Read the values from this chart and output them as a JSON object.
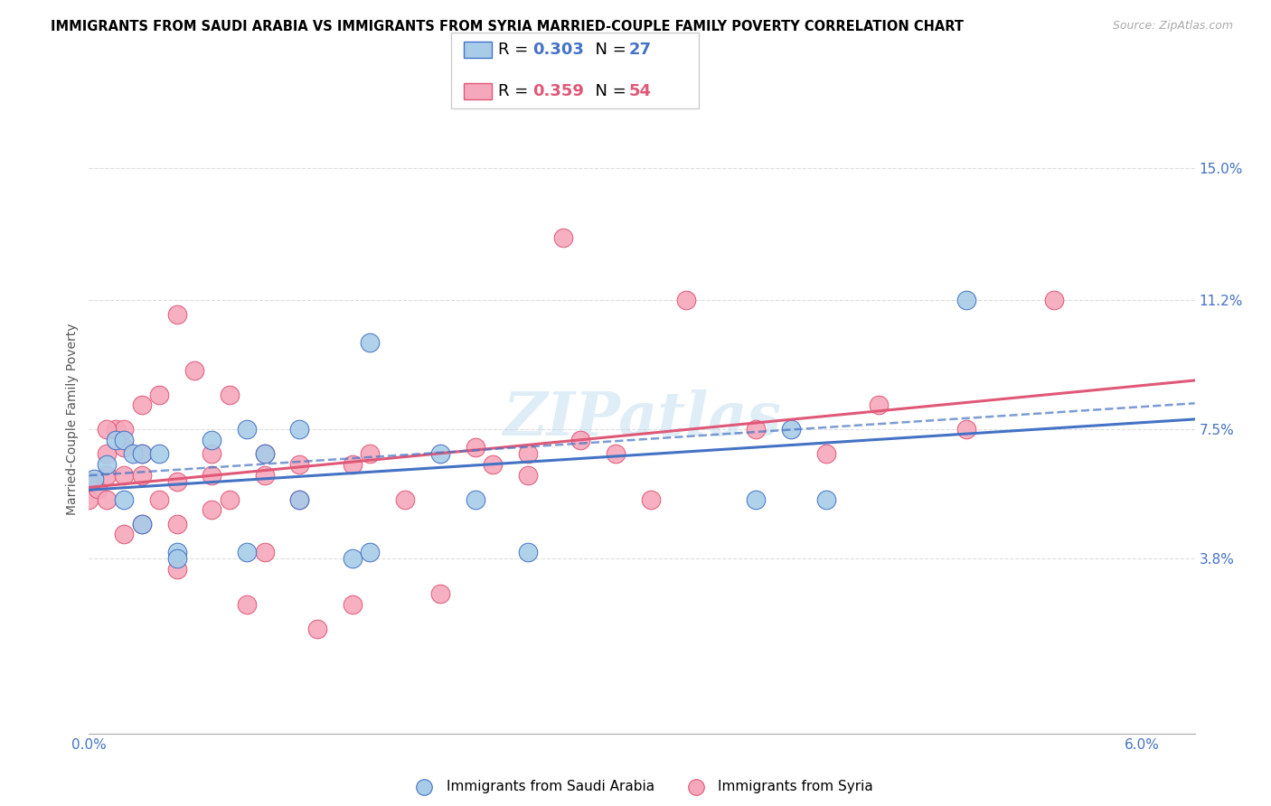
{
  "title": "IMMIGRANTS FROM SAUDI ARABIA VS IMMIGRANTS FROM SYRIA MARRIED-COUPLE FAMILY POVERTY CORRELATION CHART",
  "source": "Source: ZipAtlas.com",
  "ylabel": "Married-Couple Family Poverty",
  "xlim": [
    0.0,
    0.063
  ],
  "ylim": [
    -0.012,
    0.168
  ],
  "xticks": [
    0.0,
    0.01,
    0.02,
    0.03,
    0.04,
    0.05,
    0.06
  ],
  "xticklabels": [
    "0.0%",
    "",
    "",
    "",
    "",
    "",
    "6.0%"
  ],
  "ytick_vals": [
    0.038,
    0.075,
    0.112,
    0.15
  ],
  "yticklabels": [
    "3.8%",
    "7.5%",
    "11.2%",
    "15.0%"
  ],
  "saudi_color": "#a8cce8",
  "syria_color": "#f5a8bb",
  "saudi_line_color": "#4472c4",
  "syria_line_color": "#e05878",
  "saudi_R": 0.303,
  "saudi_N": 27,
  "syria_R": 0.359,
  "syria_N": 54,
  "legend_label_saudi": "Immigrants from Saudi Arabia",
  "legend_label_syria": "Immigrants from Syria",
  "watermark": "ZIPatlas",
  "saudi_x": [
    0.0003,
    0.001,
    0.0015,
    0.002,
    0.002,
    0.0025,
    0.003,
    0.003,
    0.004,
    0.005,
    0.005,
    0.007,
    0.009,
    0.009,
    0.01,
    0.012,
    0.012,
    0.015,
    0.016,
    0.016,
    0.02,
    0.022,
    0.025,
    0.04,
    0.042,
    0.05,
    0.038
  ],
  "saudi_y": [
    0.061,
    0.065,
    0.072,
    0.055,
    0.072,
    0.068,
    0.048,
    0.068,
    0.068,
    0.04,
    0.038,
    0.072,
    0.04,
    0.075,
    0.068,
    0.055,
    0.075,
    0.038,
    0.1,
    0.04,
    0.068,
    0.055,
    0.04,
    0.075,
    0.055,
    0.112,
    0.055
  ],
  "syria_x": [
    0.0,
    0.0005,
    0.001,
    0.001,
    0.001,
    0.0015,
    0.002,
    0.002,
    0.002,
    0.003,
    0.003,
    0.003,
    0.003,
    0.004,
    0.004,
    0.005,
    0.005,
    0.005,
    0.006,
    0.007,
    0.007,
    0.007,
    0.008,
    0.008,
    0.009,
    0.01,
    0.01,
    0.01,
    0.012,
    0.012,
    0.013,
    0.015,
    0.015,
    0.016,
    0.018,
    0.02,
    0.022,
    0.023,
    0.025,
    0.025,
    0.027,
    0.028,
    0.03,
    0.032,
    0.034,
    0.038,
    0.042,
    0.045,
    0.05,
    0.055,
    0.0,
    0.001,
    0.002,
    0.005
  ],
  "syria_y": [
    0.055,
    0.058,
    0.055,
    0.062,
    0.068,
    0.075,
    0.045,
    0.062,
    0.075,
    0.048,
    0.062,
    0.068,
    0.082,
    0.055,
    0.085,
    0.035,
    0.048,
    0.06,
    0.092,
    0.052,
    0.062,
    0.068,
    0.055,
    0.085,
    0.025,
    0.04,
    0.062,
    0.068,
    0.055,
    0.065,
    0.018,
    0.025,
    0.065,
    0.068,
    0.055,
    0.028,
    0.07,
    0.065,
    0.062,
    0.068,
    0.13,
    0.072,
    0.068,
    0.055,
    0.112,
    0.075,
    0.068,
    0.082,
    0.075,
    0.112,
    0.06,
    0.075,
    0.07,
    0.108
  ],
  "grid_color": "#dddddd",
  "tick_color": "#4472c4",
  "title_fontsize": 10.5,
  "axis_fontsize": 11,
  "legend_fontsize": 13
}
